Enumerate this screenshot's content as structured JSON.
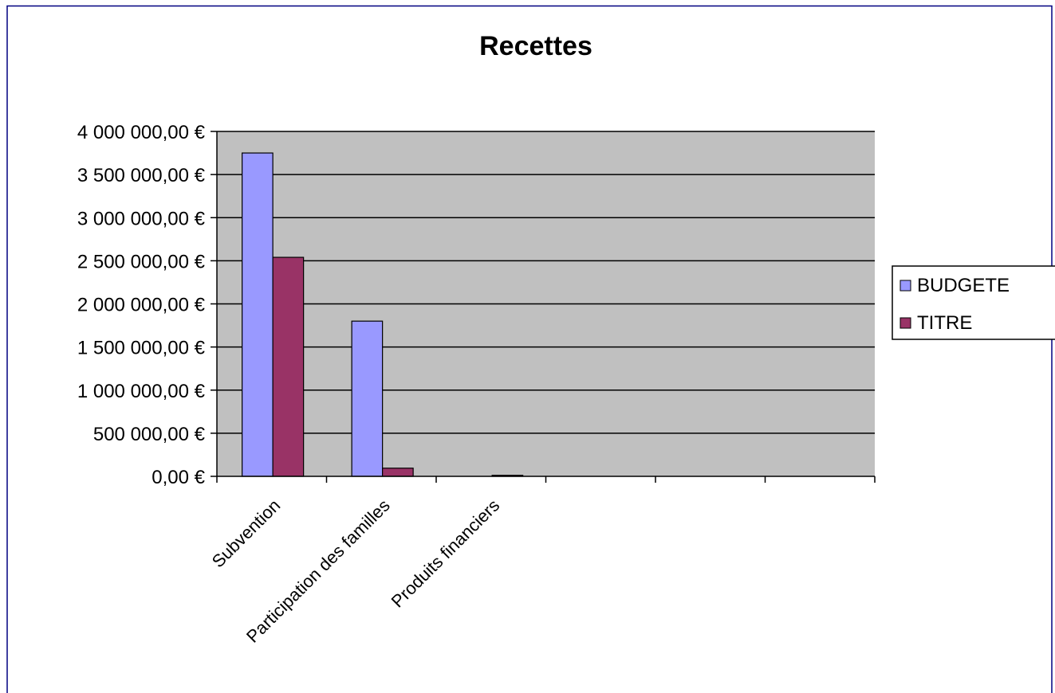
{
  "chart_data": {
    "type": "bar",
    "title": "Recettes",
    "categories": [
      "Subvention",
      "Participation des familles",
      "Produits financiers",
      "",
      "",
      ""
    ],
    "series": [
      {
        "name": "BUDGETE",
        "color": "#9999ff",
        "values": [
          3750000,
          1800000,
          0,
          0,
          0,
          0
        ]
      },
      {
        "name": "TITRE",
        "color": "#993366",
        "values": [
          2540000,
          95000,
          12000,
          0,
          0,
          0
        ]
      }
    ],
    "ylim": [
      0,
      4000000
    ],
    "yticks": [
      0,
      500000,
      1000000,
      1500000,
      2000000,
      2500000,
      3000000,
      3500000,
      4000000
    ],
    "ytick_labels": [
      "0,00 €",
      "500 000,00 €",
      "1 000 000,00 €",
      "1 500 000,00 €",
      "2 000 000,00 €",
      "2 500 000,00 €",
      "3 000 000,00 €",
      "3 500 000,00 €",
      "4 000 000,00 €"
    ],
    "grid": true,
    "plot_background": "#c0c0c0",
    "legend_position": "right",
    "xlabel": "",
    "ylabel": ""
  }
}
